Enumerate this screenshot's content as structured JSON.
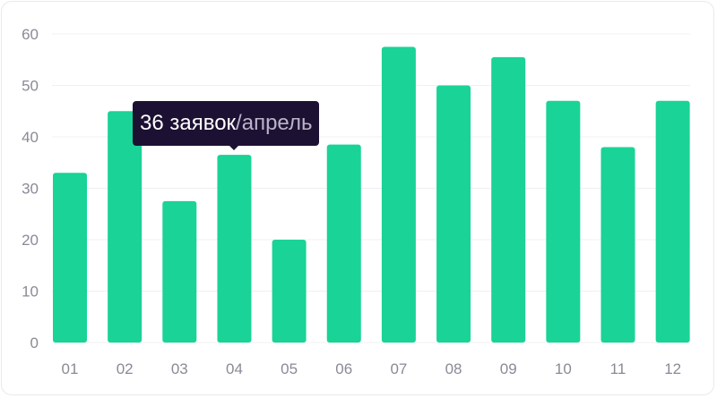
{
  "chart_data": {
    "type": "bar",
    "categories": [
      "01",
      "02",
      "03",
      "04",
      "05",
      "06",
      "07",
      "08",
      "09",
      "10",
      "11",
      "12"
    ],
    "values": [
      33,
      45,
      27.5,
      36.5,
      20,
      38.5,
      57.5,
      50,
      55.5,
      47,
      38,
      47
    ],
    "title": "",
    "xlabel": "",
    "ylabel": "",
    "ylim": [
      0,
      60
    ],
    "yticks": [
      0,
      10,
      20,
      30,
      40,
      50,
      60
    ],
    "grid": true,
    "bar_color": "#1ad396",
    "tooltip": {
      "category": "04",
      "value_text": "36 заявок",
      "separator": "/",
      "period_text": "апрель"
    }
  }
}
